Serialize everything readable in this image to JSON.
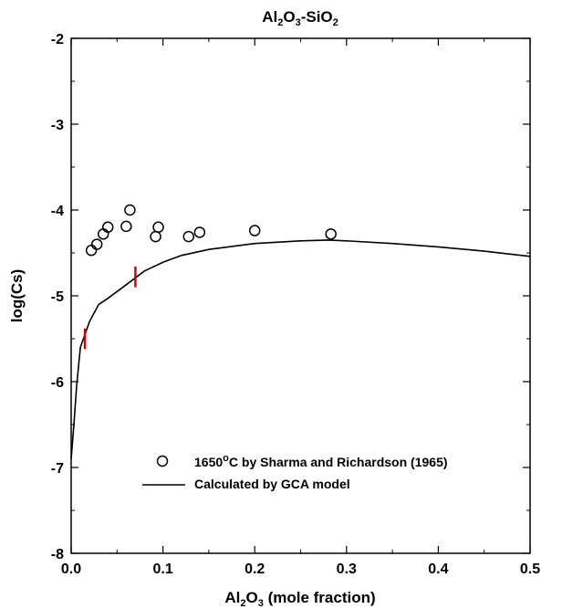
{
  "chart_data": {
    "type": "scatter",
    "title": {
      "p1": "Al",
      "s1": "2",
      "p2": "O",
      "s2": "3",
      "p3": "-SiO",
      "s3": "2"
    },
    "xlabel": {
      "p1": "Al",
      "s1": "2",
      "p2": "O",
      "s2": "3",
      "p3": " (mole fraction)"
    },
    "ylabel": "log(Cs)",
    "xlim": [
      0.0,
      0.5
    ],
    "ylim": [
      -8,
      -2
    ],
    "x_ticks": [
      "0.0",
      "0.1",
      "0.2",
      "0.3",
      "0.4",
      "0.5"
    ],
    "y_ticks": [
      "-2",
      "-3",
      "-4",
      "-5",
      "-6",
      "-7",
      "-8"
    ],
    "grid": false,
    "legend_position": "bottom-right",
    "series": [
      {
        "name": "1650°C by Sharma and Richardson (1965)",
        "legend": {
          "pre": "1650",
          "sup": "o",
          "post": "C by Sharma and Richardson (1965)"
        },
        "marker": "open-circle",
        "color": "#000000",
        "points": [
          [
            0.022,
            -4.47
          ],
          [
            0.028,
            -4.4
          ],
          [
            0.035,
            -4.28
          ],
          [
            0.04,
            -4.2
          ],
          [
            0.06,
            -4.19
          ],
          [
            0.064,
            -4.0
          ],
          [
            0.092,
            -4.31
          ],
          [
            0.095,
            -4.2
          ],
          [
            0.128,
            -4.31
          ],
          [
            0.14,
            -4.26
          ],
          [
            0.2,
            -4.24
          ],
          [
            0.283,
            -4.28
          ]
        ]
      },
      {
        "name": "Calculated by GCA model",
        "legend": {
          "pre": "Calculated by GCA model",
          "sup": "",
          "post": ""
        },
        "marker": "line",
        "color": "#000000",
        "points": [
          [
            0.0,
            -6.9
          ],
          [
            0.003,
            -6.5
          ],
          [
            0.006,
            -6.05
          ],
          [
            0.01,
            -5.6
          ],
          [
            0.015,
            -5.45
          ],
          [
            0.02,
            -5.3
          ],
          [
            0.03,
            -5.1
          ],
          [
            0.04,
            -5.03
          ],
          [
            0.05,
            -4.95
          ],
          [
            0.06,
            -4.87
          ],
          [
            0.07,
            -4.79
          ],
          [
            0.08,
            -4.71
          ],
          [
            0.1,
            -4.61
          ],
          [
            0.12,
            -4.53
          ],
          [
            0.15,
            -4.46
          ],
          [
            0.2,
            -4.39
          ],
          [
            0.25,
            -4.36
          ],
          [
            0.28,
            -4.35
          ],
          [
            0.3,
            -4.36
          ],
          [
            0.35,
            -4.39
          ],
          [
            0.4,
            -4.43
          ],
          [
            0.45,
            -4.48
          ],
          [
            0.5,
            -4.54
          ]
        ]
      }
    ],
    "markers": [
      {
        "x": 0.015,
        "y_range": [
          -5.62,
          -5.38
        ],
        "color": "#d40000"
      },
      {
        "x": 0.07,
        "y_range": [
          -4.9,
          -4.66
        ],
        "color": "#d40000"
      }
    ]
  }
}
